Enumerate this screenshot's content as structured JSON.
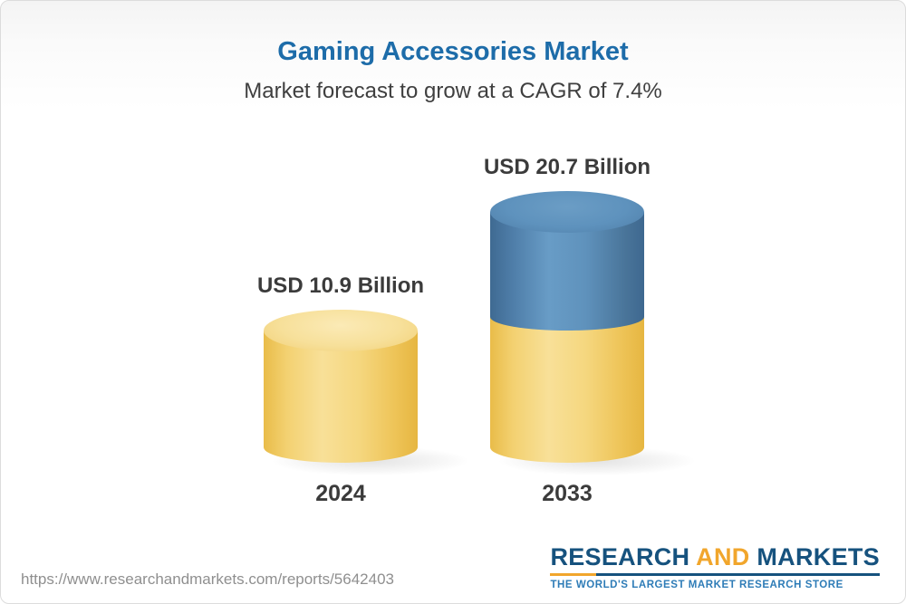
{
  "header": {
    "title": "Gaming Accessories Market",
    "subtitle": "Market forecast to grow at a CAGR of 7.4%"
  },
  "chart_data": {
    "type": "bar",
    "variant": "3d-cylinder",
    "categories": [
      "2024",
      "2033"
    ],
    "values": [
      10.9,
      20.7
    ],
    "value_labels": [
      "USD 10.9 Billion",
      "USD 20.7 Billion"
    ],
    "unit": "USD Billion",
    "cagr_percent": 7.4,
    "title": "Gaming Accessories Market",
    "subtitle": "Market forecast to grow at a CAGR of 7.4%",
    "legend": false,
    "gridlines": false,
    "axes_visible": false,
    "colors": {
      "bar_2024": "#F5D77F",
      "bar_2033_base_segment": "#F5D77F",
      "bar_2033_growth_segment": "#5E92BD",
      "title_text": "#1D6CA9",
      "label_text": "#3B3B3B"
    }
  },
  "footer": {
    "url": "https://www.researchandmarkets.com/reports/5642403",
    "logo": {
      "word1": "RESEARCH",
      "word2": "AND",
      "word3": "MARKETS",
      "tagline": "THE WORLD'S LARGEST MARKET RESEARCH STORE",
      "brand_blue": "#16527E",
      "brand_gold": "#F1A62C"
    }
  }
}
